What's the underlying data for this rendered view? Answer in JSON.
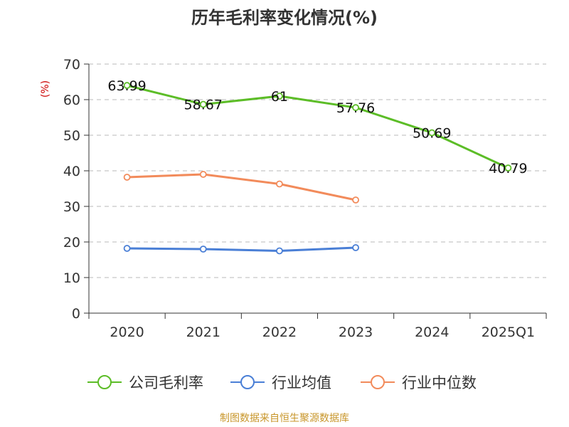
{
  "chart_data": {
    "type": "line",
    "title": "历年毛利率变化情况(%)",
    "ylabel": "(%)",
    "xlabel": "",
    "categories": [
      "2020",
      "2021",
      "2022",
      "2023",
      "2024",
      "2025Q1"
    ],
    "ylim": [
      0,
      70
    ],
    "yticks": [
      0,
      10,
      20,
      30,
      40,
      50,
      60,
      70
    ],
    "grid": true,
    "legend_position": "bottom",
    "series": [
      {
        "name": "公司毛利率",
        "color": "#5cbd27",
        "values": [
          63.99,
          58.67,
          61,
          57.76,
          50.69,
          40.79
        ],
        "labels": [
          "63.99",
          "58.67",
          "61",
          "57.76",
          "50.69",
          "40.79"
        ]
      },
      {
        "name": "行业均值",
        "color": "#4a7fd6",
        "values": [
          18.2,
          18.0,
          17.5,
          18.4,
          null,
          null
        ]
      },
      {
        "name": "行业中位数",
        "color": "#f28b5b",
        "values": [
          38.2,
          39.0,
          36.3,
          31.8,
          null,
          null
        ]
      }
    ]
  },
  "footer": {
    "source": "制图数据来自恒生聚源数据库",
    "source_color": "#c8962b"
  },
  "ylabel_color": "#cc0000"
}
